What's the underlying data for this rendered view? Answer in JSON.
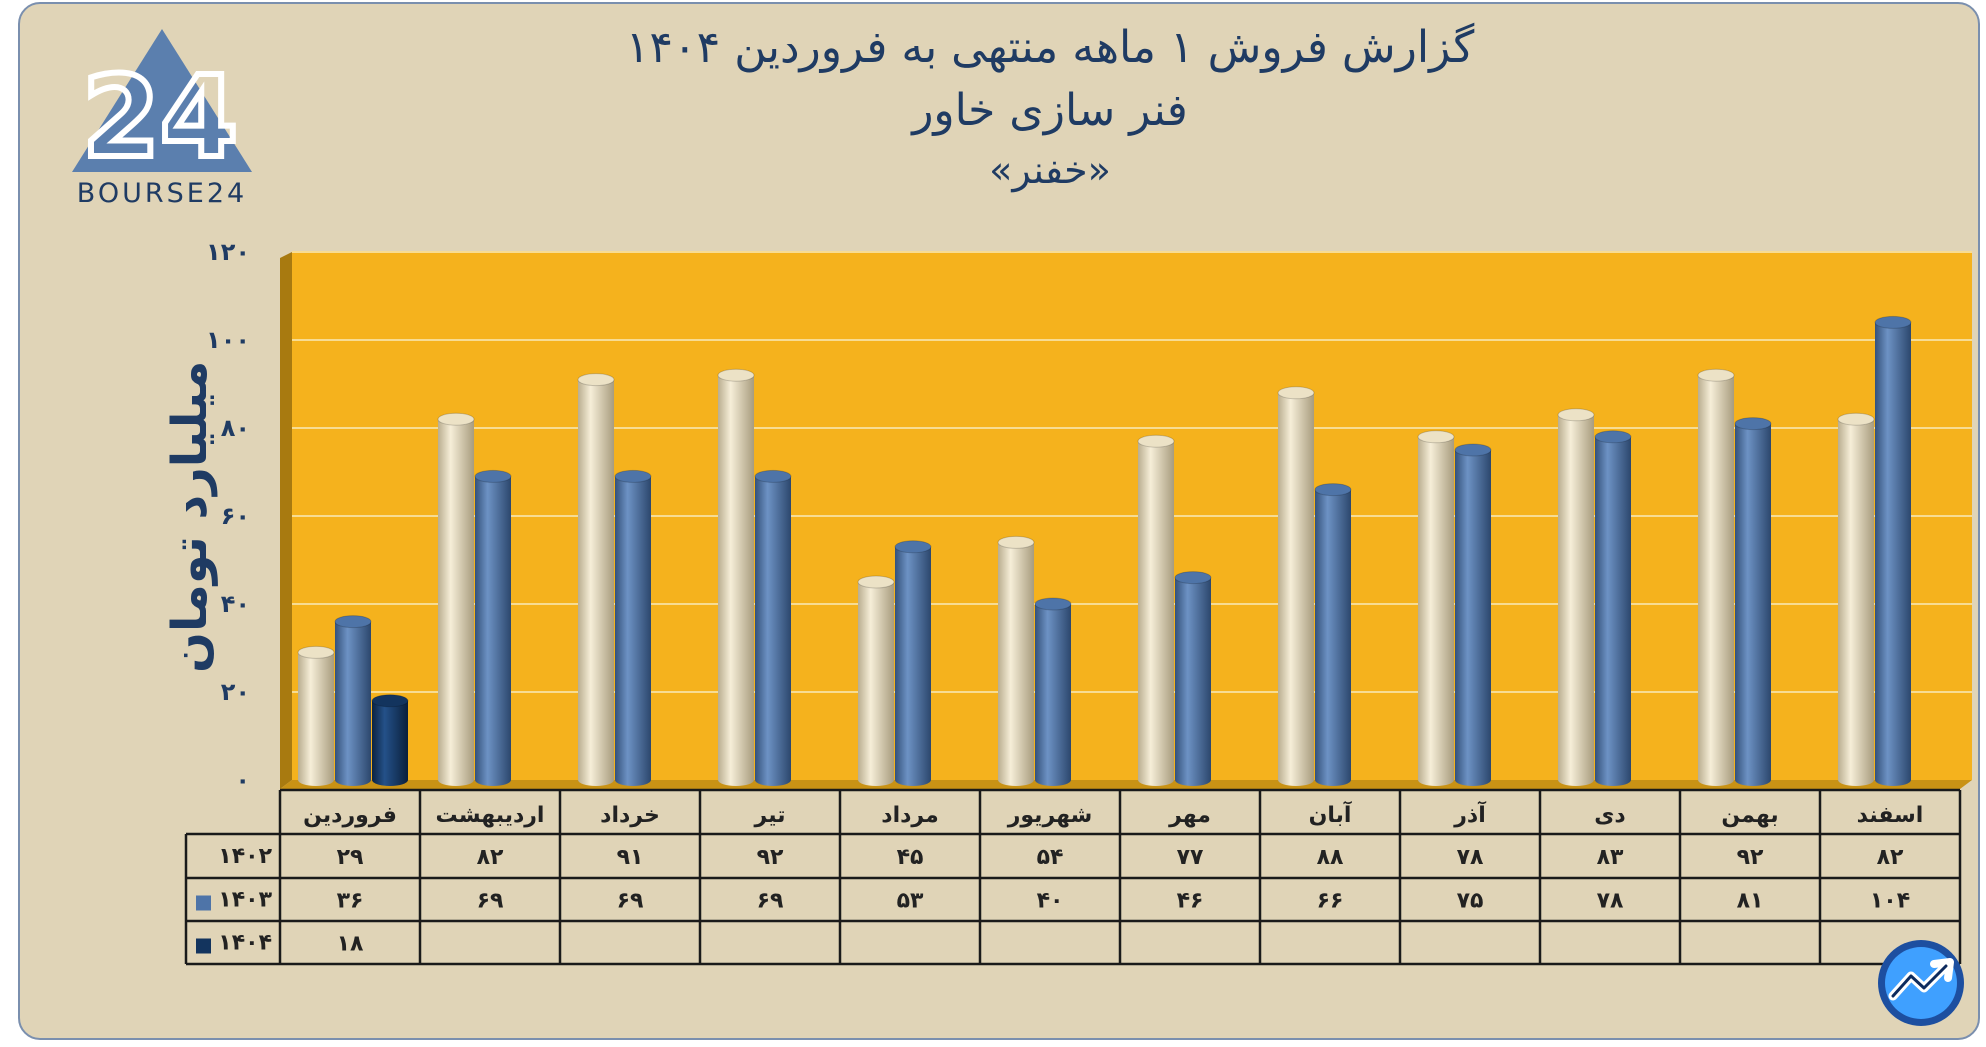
{
  "title": {
    "line1": "گزارش  فروش ۱ ماهه منتهی به فروردین ۱۴۰۴",
    "line2": "فنر سازی خاور",
    "line3": "«خفنر»"
  },
  "logo": {
    "numeral": "24",
    "text": "BOURSE24"
  },
  "colors": {
    "background": "#e0d4b7",
    "plot_area": "#f5b21d",
    "series_1402": "#ece2c6",
    "series_1403": "#4e74a8",
    "series_1404": "#13345e",
    "text": "#1f3b63"
  },
  "chart_data": {
    "type": "bar",
    "ylabel": "میلیارد تومان",
    "ylim": [
      0,
      120
    ],
    "yticks": [
      0,
      20,
      40,
      60,
      80,
      100,
      120
    ],
    "ytick_labels": [
      "۰",
      "۲۰",
      "۴۰",
      "۶۰",
      "۸۰",
      "۱۰۰",
      "۱۲۰"
    ],
    "grid": true,
    "categories": [
      "فروردین",
      "اردیبهشت",
      "خرداد",
      "تیر",
      "مرداد",
      "شهریور",
      "مهر",
      "آبان",
      "آذر",
      "دی",
      "بهمن",
      "اسفند"
    ],
    "series": [
      {
        "name": "۱۴۰۲",
        "values": [
          29,
          82,
          91,
          92,
          45,
          54,
          77,
          88,
          78,
          83,
          92,
          82
        ],
        "labels": [
          "۲۹",
          "۸۲",
          "۹۱",
          "۹۲",
          "۴۵",
          "۵۴",
          "۷۷",
          "۸۸",
          "۷۸",
          "۸۳",
          "۹۲",
          "۸۲"
        ]
      },
      {
        "name": "۱۴۰۳",
        "values": [
          36,
          69,
          69,
          69,
          53,
          40,
          46,
          66,
          75,
          78,
          81,
          104
        ],
        "labels": [
          "۳۶",
          "۶۹",
          "۶۹",
          "۶۹",
          "۵۳",
          "۴۰",
          "۴۶",
          "۶۶",
          "۷۵",
          "۷۸",
          "۸۱",
          "۱۰۴"
        ]
      },
      {
        "name": "۱۴۰۴",
        "values": [
          18,
          null,
          null,
          null,
          null,
          null,
          null,
          null,
          null,
          null,
          null,
          null
        ],
        "labels": [
          "۱۸",
          "",
          "",
          "",
          "",
          "",
          "",
          "",
          "",
          "",
          "",
          ""
        ]
      }
    ]
  }
}
